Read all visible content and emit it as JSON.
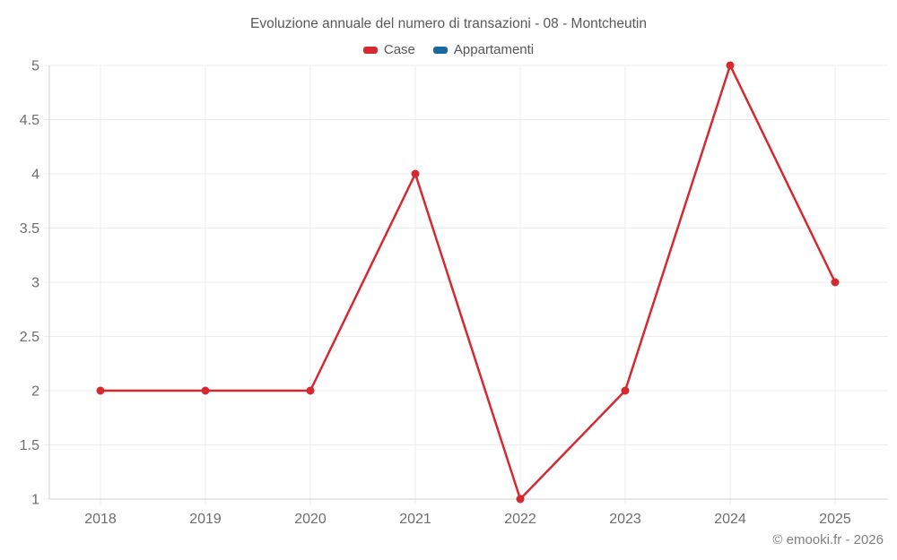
{
  "chart_data": {
    "type": "line",
    "title": "Evoluzione annuale del numero di transazioni - 08 - Montcheutin",
    "categories": [
      "2018",
      "2019",
      "2020",
      "2021",
      "2022",
      "2023",
      "2024",
      "2025"
    ],
    "series": [
      {
        "name": "Case",
        "color": "#d7282f",
        "values": [
          2,
          2,
          2,
          4,
          1,
          2,
          5,
          3
        ]
      },
      {
        "name": "Appartamenti",
        "color": "#1769a0",
        "values": []
      }
    ],
    "ylim": [
      1,
      5
    ],
    "yticks": [
      1,
      1.5,
      2,
      2.5,
      3,
      3.5,
      4,
      4.5,
      5
    ],
    "ytick_labels": [
      "1",
      "1.5",
      "2",
      "2.5",
      "3",
      "3.5",
      "4",
      "4.5",
      "5"
    ],
    "xlabel": "",
    "ylabel": "",
    "grid": true,
    "legend_position": "top"
  },
  "colors": {
    "grid_line": "#ececec",
    "axis_line": "#d2d2d2",
    "tick_label": "#6d6d6d",
    "title_text": "#58595b"
  },
  "footer": {
    "credit": "© emooki.fr - 2026"
  }
}
